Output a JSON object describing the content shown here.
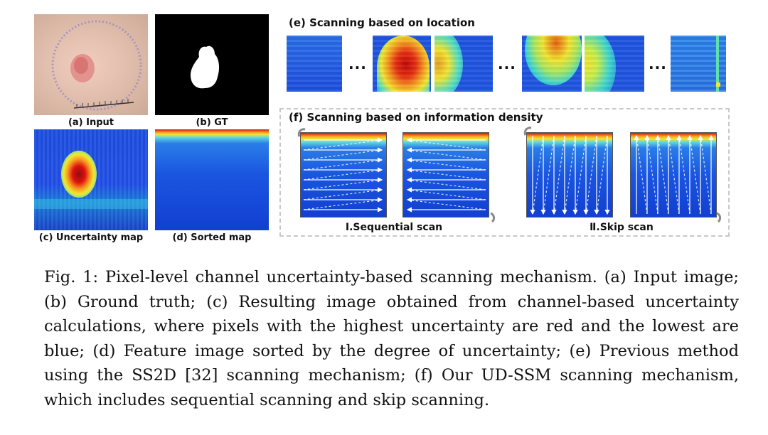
{
  "figure": {
    "panels": {
      "a": {
        "label": "(a) Input"
      },
      "b": {
        "label": "(b) GT"
      },
      "c": {
        "label": "(c) Uncertainty map"
      },
      "d": {
        "label": "(d) Sorted map"
      }
    },
    "e": {
      "title": "(e) Scanning based on location",
      "ellipsis": "..."
    },
    "f": {
      "title": "(f) Scanning based on information density",
      "sequential_label": "Ⅰ.Sequential scan",
      "skip_label": "Ⅱ.Skip scan"
    }
  },
  "caption": "Fig. 1: Pixel-level channel uncertainty-based scanning mechanism. (a) Input image; (b) Ground truth; (c) Resulting image obtained from channel-based uncertainty calculations, where pixels with the highest uncertainty are red and the lowest are blue; (d) Feature image sorted by the degree of uncertainty; (e) Previous method using the SS2D [32] scanning mechanism; (f) Our UD-SSM scanning mechanism, which includes sequential scanning and skip scanning.",
  "colors": {
    "heat_red": "#e01010",
    "heat_yellow": "#f2e630",
    "heat_blue": "#1a3fd9",
    "dark_blue": "#0d1fb8"
  }
}
